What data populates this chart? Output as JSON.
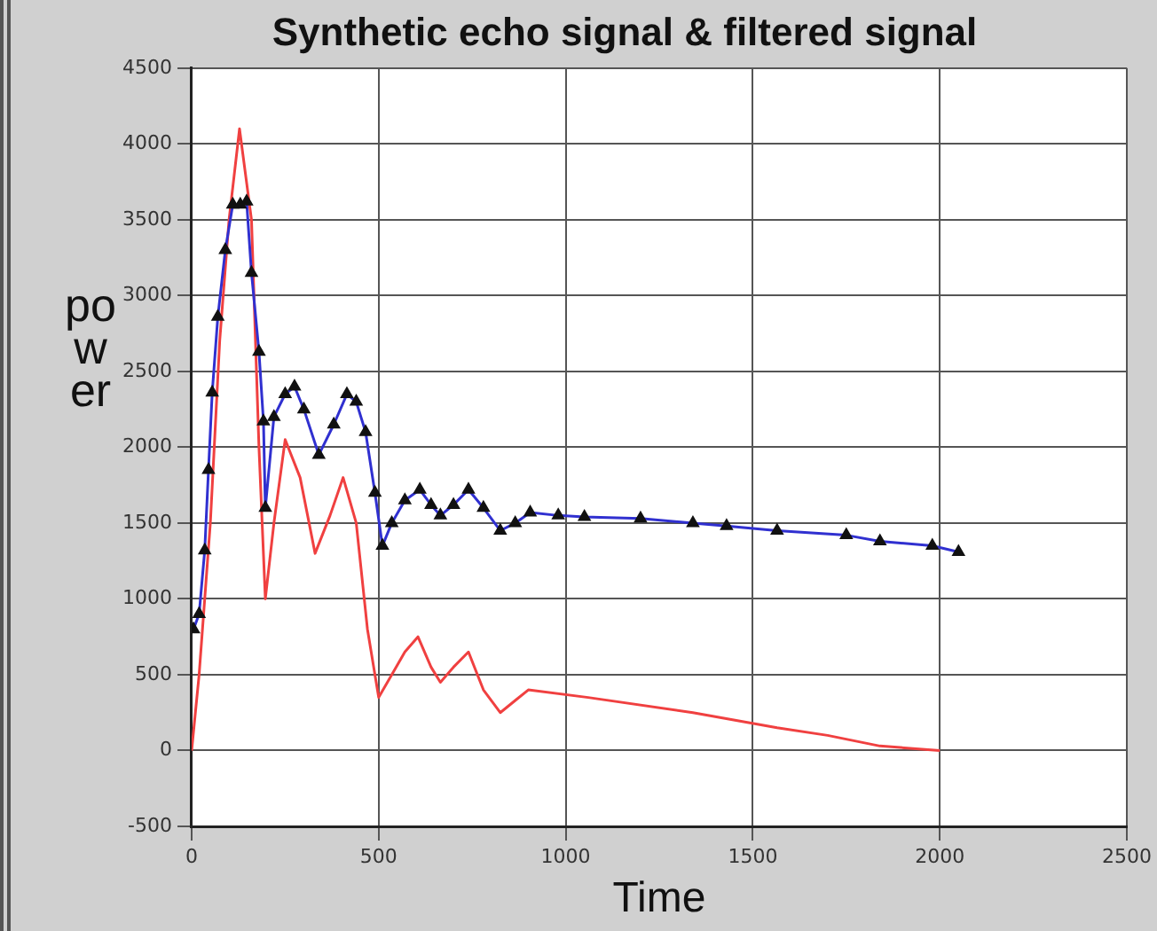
{
  "chart_data": {
    "type": "line",
    "title": "Synthetic echo signal & filtered signal",
    "xlabel": "Time",
    "ylabel": "power",
    "xlim": [
      0,
      2500
    ],
    "xticks": [
      0,
      500,
      1000,
      1500,
      2000,
      2500
    ],
    "ylim": [
      -500,
      4500
    ],
    "yticks": [
      -500,
      0,
      500,
      1000,
      1500,
      2000,
      2500,
      3000,
      3500,
      4000,
      4500
    ],
    "grid": true,
    "legend": false,
    "line_style": "solid",
    "series": [
      {
        "color": "#3030d0",
        "marker": "triangle",
        "x": [
          5,
          20,
          35,
          45,
          55,
          70,
          90,
          110,
          130,
          147,
          160,
          180,
          192,
          197,
          220,
          250,
          275,
          300,
          340,
          380,
          415,
          440,
          465,
          490,
          510,
          535,
          570,
          610,
          640,
          665,
          700,
          740,
          780,
          825,
          865,
          905,
          980,
          1050,
          1200,
          1340,
          1430,
          1565,
          1750,
          1840,
          1980,
          2050
        ],
        "values": [
          800,
          900,
          1320,
          1850,
          2360,
          2860,
          3300,
          3600,
          3600,
          3620,
          3150,
          2630,
          2170,
          1600,
          2200,
          2350,
          2400,
          2250,
          1950,
          2150,
          2350,
          2300,
          2100,
          1700,
          1350,
          1500,
          1650,
          1720,
          1620,
          1550,
          1620,
          1720,
          1600,
          1450,
          1500,
          1570,
          1550,
          1540,
          1530,
          1500,
          1480,
          1450,
          1420,
          1380,
          1350,
          1310
        ]
      },
      {
        "color": "#f04040",
        "marker": "none",
        "x": [
          0,
          20,
          50,
          75,
          100,
          128,
          160,
          180,
          197,
          220,
          250,
          290,
          330,
          370,
          405,
          440,
          470,
          500,
          535,
          570,
          605,
          640,
          665,
          700,
          740,
          780,
          825,
          865,
          900,
          1060,
          1340,
          1565,
          1700,
          1840,
          2000
        ],
        "values": [
          0,
          500,
          1500,
          2700,
          3500,
          4100,
          3500,
          2000,
          1000,
          1500,
          2050,
          1800,
          1300,
          1550,
          1800,
          1500,
          800,
          350,
          500,
          650,
          750,
          550,
          450,
          550,
          650,
          400,
          250,
          330,
          400,
          350,
          250,
          150,
          100,
          30,
          0
        ]
      }
    ]
  }
}
